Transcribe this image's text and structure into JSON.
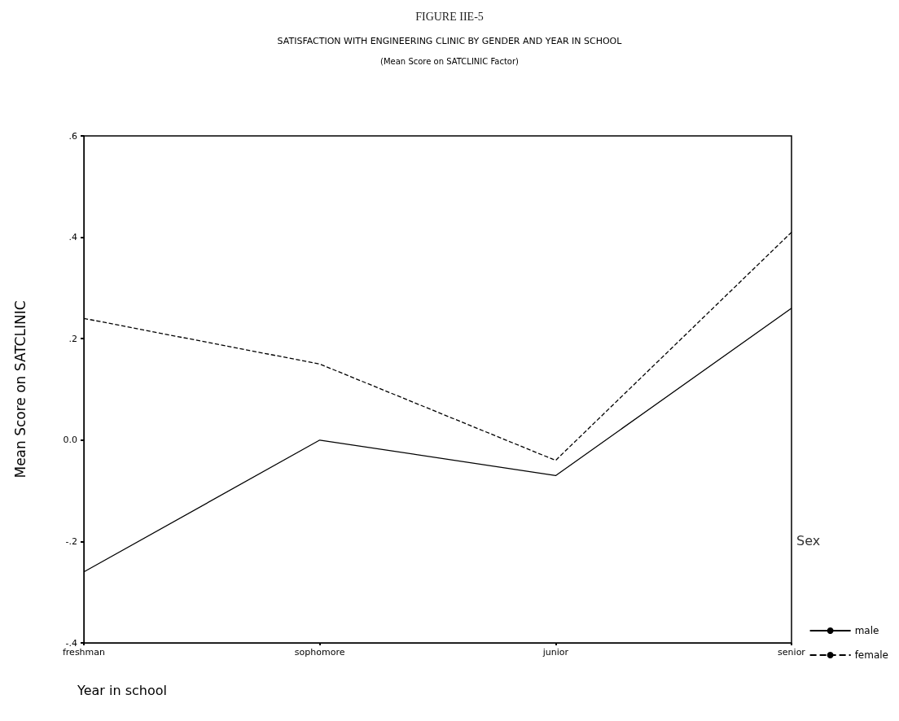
{
  "chart_data": {
    "type": "line",
    "title": "FIGURE IIE-5",
    "subtitle": "SATISFACTION WITH ENGINEERING CLINIC BY GENDER AND YEAR IN SCHOOL",
    "annotations": [
      "(Mean Score on SATCLINIC Factor)"
    ],
    "xlabel": "Year in school",
    "ylabel": "Mean Score on SATCLINIC",
    "legend_title": "Sex",
    "categories": [
      "freshman",
      "sophomore",
      "junior",
      "senior"
    ],
    "series": [
      {
        "name": "male",
        "color": "#000000",
        "line_style": "solid",
        "values": [
          -0.26,
          0,
          -0.07,
          0.26
        ]
      },
      {
        "name": "female",
        "color": "#000000",
        "line_style": "dashed",
        "values": [
          0.24,
          0.15,
          -0.04,
          0.41
        ]
      }
    ],
    "ylim": [
      -0.4,
      0.6
    ],
    "yticks": [
      {
        "value": -0.4,
        "label": "-.4"
      },
      {
        "value": -0.2,
        "label": "-.2"
      },
      {
        "value": 0,
        "label": "0.0"
      },
      {
        "value": 0.2,
        "label": ".2"
      },
      {
        "value": 0.4,
        "label": ".4"
      },
      {
        "value": 0.6,
        "label": ".6"
      }
    ],
    "marker": "none",
    "grid": false,
    "legend": "bottom right"
  }
}
